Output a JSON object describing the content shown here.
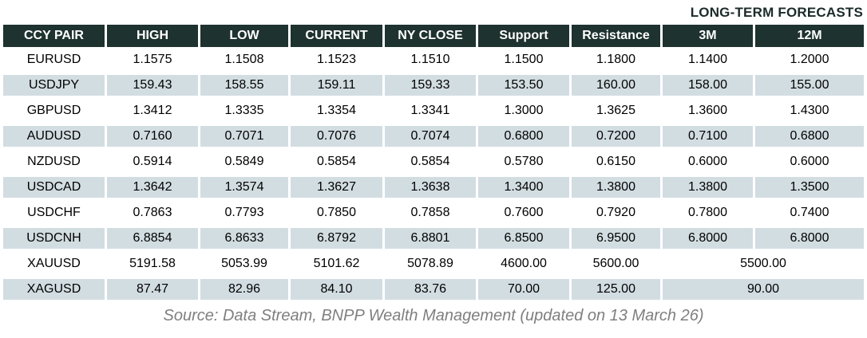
{
  "chart_data": {
    "type": "table",
    "title": "LONG-TERM FORECASTS",
    "columns": [
      "CCY PAIR",
      "HIGH",
      "LOW",
      "CURRENT",
      "NY CLOSE",
      "Support",
      "Resistance",
      "3M",
      "12M"
    ],
    "rows": [
      {
        "cells": [
          "EURUSD",
          "1.1575",
          "1.1508",
          "1.1523",
          "1.1510",
          "1.1500",
          "1.1800",
          "1.1400",
          "1.2000"
        ]
      },
      {
        "cells": [
          "USDJPY",
          "159.43",
          "158.55",
          "159.11",
          "159.33",
          "153.50",
          "160.00",
          "158.00",
          "155.00"
        ]
      },
      {
        "cells": [
          "GBPUSD",
          "1.3412",
          "1.3335",
          "1.3354",
          "1.3341",
          "1.3000",
          "1.3625",
          "1.3600",
          "1.4300"
        ]
      },
      {
        "cells": [
          "AUDUSD",
          "0.7160",
          "0.7071",
          "0.7076",
          "0.7074",
          "0.6800",
          "0.7200",
          "0.7100",
          "0.6800"
        ]
      },
      {
        "cells": [
          "NZDUSD",
          "0.5914",
          "0.5849",
          "0.5854",
          "0.5854",
          "0.5780",
          "0.6150",
          "0.6000",
          "0.6000"
        ]
      },
      {
        "cells": [
          "USDCAD",
          "1.3642",
          "1.3574",
          "1.3627",
          "1.3638",
          "1.3400",
          "1.3800",
          "1.3800",
          "1.3500"
        ]
      },
      {
        "cells": [
          "USDCHF",
          "0.7863",
          "0.7793",
          "0.7850",
          "0.7858",
          "0.7600",
          "0.7920",
          "0.7800",
          "0.7400"
        ]
      },
      {
        "cells": [
          "USDCNH",
          "6.8854",
          "6.8633",
          "6.8792",
          "6.8801",
          "6.8500",
          "6.9500",
          "6.8000",
          "6.8000"
        ]
      },
      {
        "cells": [
          "XAUUSD",
          "5191.58",
          "5053.99",
          "5101.62",
          "5078.89",
          "4600.00",
          "5600.00"
        ],
        "merged_forecast": "5500.00"
      },
      {
        "cells": [
          "XAGUSD",
          "87.47",
          "82.96",
          "84.10",
          "83.76",
          "70.00",
          "125.00"
        ],
        "merged_forecast": "90.00"
      }
    ],
    "source": "Source: Data Stream, BNPP Wealth Management (updated on 13 March 26)",
    "layout": {
      "striped": true,
      "forecast_columns_grouped_under_title": [
        "3M",
        "12M"
      ]
    }
  },
  "colors": {
    "header_bg": "#1e322f",
    "header_text": "#ffffff",
    "stripe_bg": "#d2dde2",
    "title_text": "#1b2b29",
    "source_text": "#7f7f7f",
    "cell_text": "#000000"
  }
}
